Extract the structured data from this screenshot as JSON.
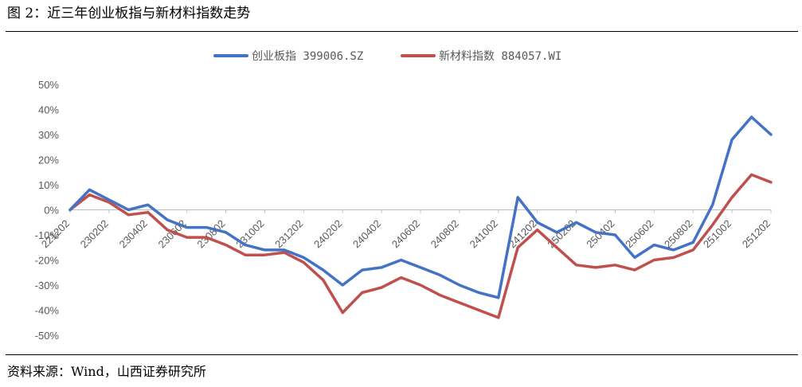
{
  "header": {
    "title": "图 2：近三年创业板指与新材料指数走势"
  },
  "footer": {
    "source": "资料来源：Wind，山西证券研究所"
  },
  "chart_data": {
    "type": "line",
    "title": "",
    "xlabel": "",
    "ylabel": "",
    "ylim": [
      -0.5,
      0.5
    ],
    "yticks": [
      "50%",
      "40%",
      "30%",
      "20%",
      "10%",
      "0%",
      "-10%",
      "-20%",
      "-30%",
      "-40%",
      "-50%"
    ],
    "grid": false,
    "legend_position": "top-center",
    "x_tick_labels": [
      "221202",
      "230202",
      "230402",
      "230602",
      "230802",
      "231002",
      "231202",
      "240202",
      "240402",
      "240602",
      "240802",
      "241002",
      "241202",
      "250202",
      "250402",
      "250602",
      "250802",
      "251002",
      "251202"
    ],
    "x_months": [
      "2022-12",
      "2023-01",
      "2023-02",
      "2023-03",
      "2023-04",
      "2023-05",
      "2023-06",
      "2023-07",
      "2023-08",
      "2023-09",
      "2023-10",
      "2023-11",
      "2023-12",
      "2024-01",
      "2024-02",
      "2024-03",
      "2024-04",
      "2024-05",
      "2024-06",
      "2024-07",
      "2024-08",
      "2024-09",
      "2024-10",
      "2024-11",
      "2024-12",
      "2025-01",
      "2025-02",
      "2025-03",
      "2025-04",
      "2025-05",
      "2025-06",
      "2025-07",
      "2025-08",
      "2025-09",
      "2025-10",
      "2025-11",
      "2025-12"
    ],
    "series": [
      {
        "name": "创业板指 399006.SZ",
        "color": "#4472C4",
        "values": [
          0.0,
          0.08,
          0.04,
          0.0,
          0.02,
          -0.04,
          -0.07,
          -0.07,
          -0.09,
          -0.14,
          -0.16,
          -0.16,
          -0.19,
          -0.24,
          -0.3,
          -0.24,
          -0.23,
          -0.2,
          -0.23,
          -0.26,
          -0.3,
          -0.33,
          -0.35,
          0.05,
          -0.05,
          -0.09,
          -0.05,
          -0.09,
          -0.1,
          -0.19,
          -0.14,
          -0.16,
          -0.13,
          0.02,
          0.28,
          0.37,
          0.3
        ]
      },
      {
        "name": "新材料指数 884057.WI",
        "color": "#C0504D",
        "values": [
          0.0,
          0.06,
          0.03,
          -0.02,
          -0.01,
          -0.08,
          -0.11,
          -0.11,
          -0.14,
          -0.18,
          -0.18,
          -0.17,
          -0.21,
          -0.28,
          -0.41,
          -0.33,
          -0.31,
          -0.27,
          -0.3,
          -0.34,
          -0.37,
          -0.4,
          -0.43,
          -0.15,
          -0.08,
          -0.15,
          -0.22,
          -0.23,
          -0.22,
          -0.24,
          -0.2,
          -0.19,
          -0.16,
          -0.06,
          0.05,
          0.14,
          0.11
        ]
      }
    ]
  }
}
